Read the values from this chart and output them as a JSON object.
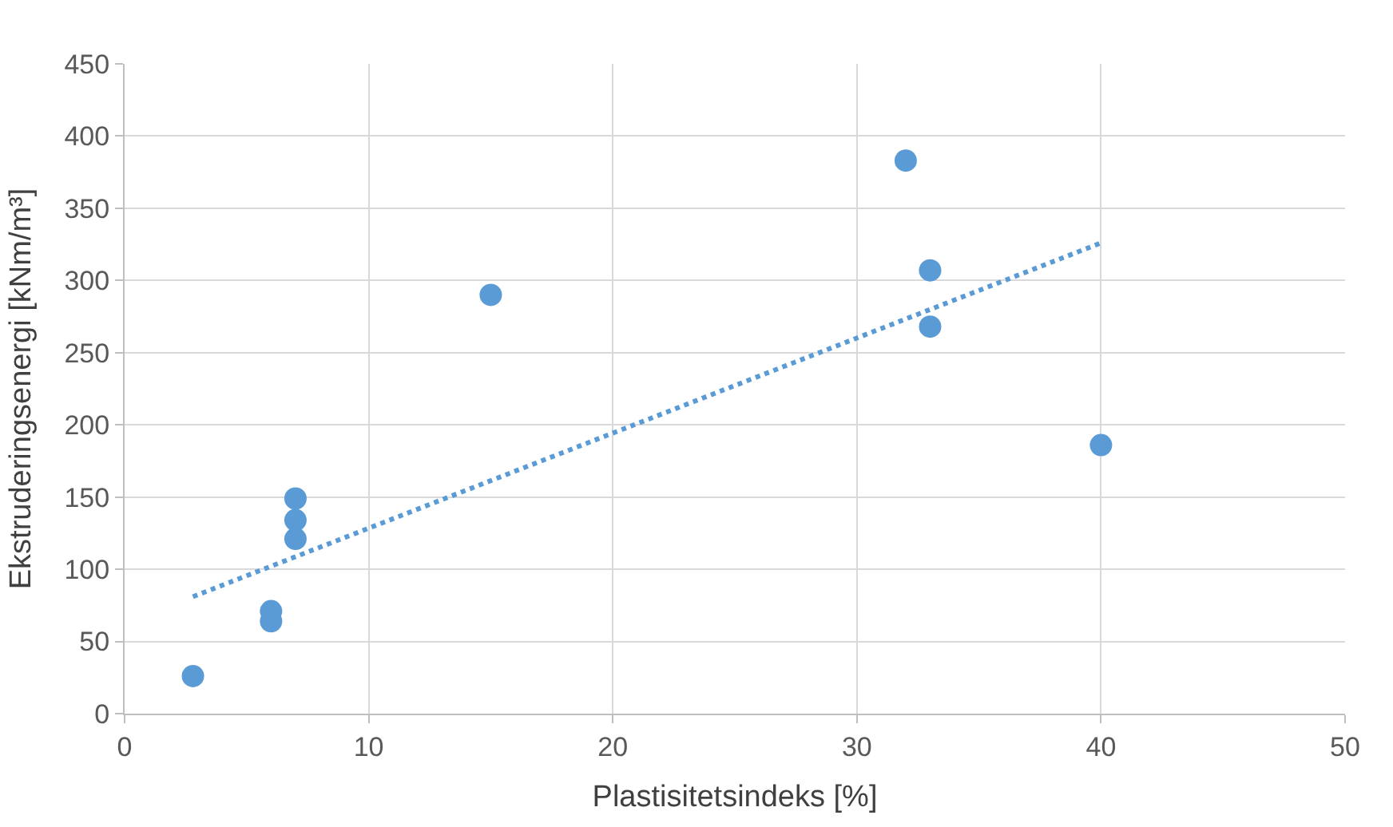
{
  "chart_data": {
    "type": "scatter",
    "xlabel": "Plastisitetsindeks [%]",
    "ylabel": "Ekstruderingsenergi [kNm/m³]",
    "xlim": [
      0,
      50
    ],
    "xticks": [
      0,
      10,
      20,
      30,
      40,
      50
    ],
    "ylim": [
      0,
      450
    ],
    "yticks": [
      0,
      50,
      100,
      150,
      200,
      250,
      300,
      350,
      400,
      450
    ],
    "grid": true,
    "marker": "circle",
    "series": [
      {
        "color": "#5b9bd5",
        "x": [
          2.8,
          6,
          6,
          7,
          7,
          7,
          15,
          32,
          33,
          33,
          40
        ],
        "values": [
          26,
          71,
          64,
          149,
          134,
          121,
          290,
          383,
          307,
          268,
          186
        ]
      },
      {
        "type": "line",
        "color": "#5b9bd5",
        "line_style": "dotted",
        "marker": "none",
        "x": [
          2.8,
          40
        ],
        "values": [
          81,
          326
        ]
      }
    ]
  }
}
